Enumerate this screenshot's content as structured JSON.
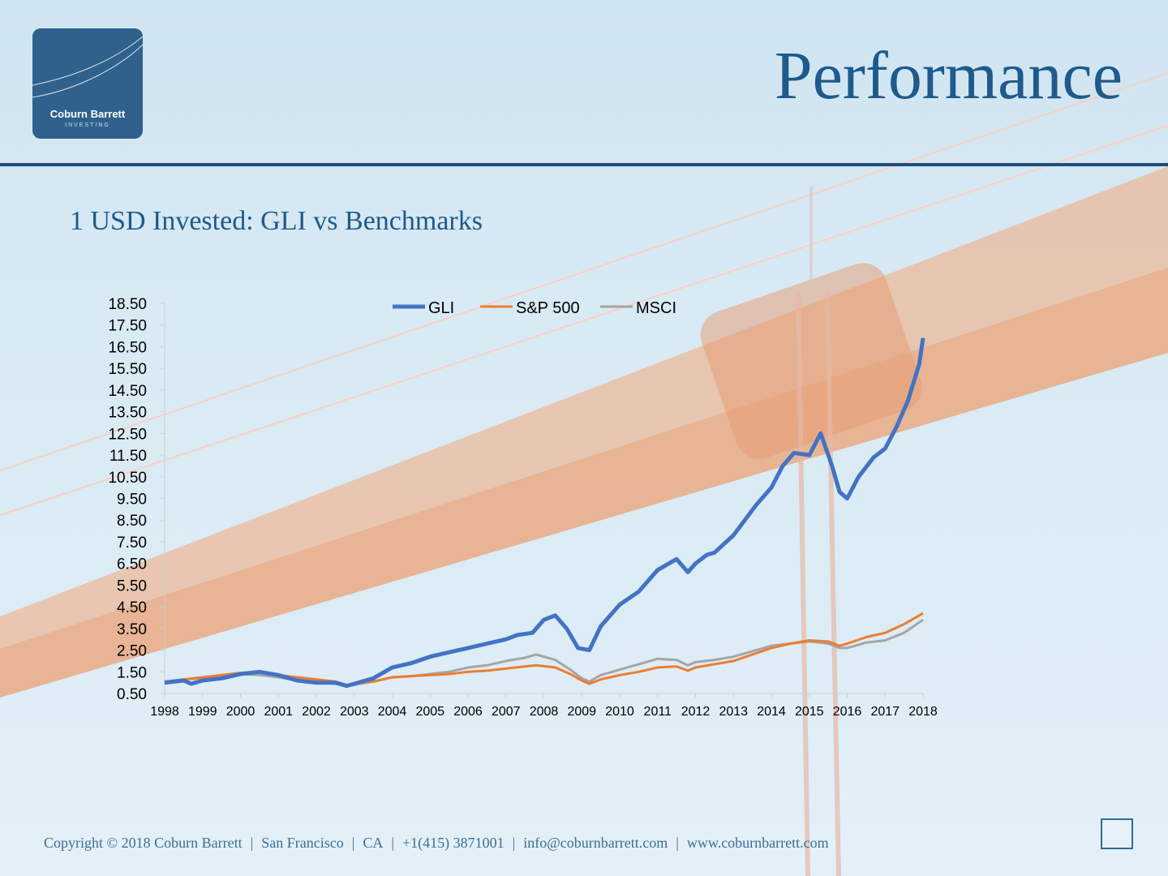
{
  "header": {
    "logo_name": "Coburn Barrett",
    "logo_sub": "INVESTING",
    "title": "Performance"
  },
  "subtitle": "1 USD Invested: GLI vs Benchmarks",
  "footer": {
    "copyright": "Copyright © 2018 Coburn Barrett",
    "city": "San Francisco",
    "state": "CA",
    "phone": "+1(415) 3871001",
    "email": "info@coburnbarrett.com",
    "website": "www.coburnbarrett.com"
  },
  "colors": {
    "title": "#1e5a8c",
    "rule": "#1f4e79",
    "gli": "#4472c4",
    "sp500": "#ed7d31",
    "msci": "#a5a5a5"
  },
  "chart_data": {
    "type": "line",
    "title": "",
    "xlabel": "",
    "ylabel": "",
    "xlim": [
      1998,
      2018
    ],
    "ylim": [
      0.5,
      18.5
    ],
    "yticks": [
      "0.50",
      "1.50",
      "2.50",
      "3.50",
      "4.50",
      "5.50",
      "6.50",
      "7.50",
      "8.50",
      "9.50",
      "10.50",
      "11.50",
      "12.50",
      "13.50",
      "14.50",
      "15.50",
      "16.50",
      "17.50",
      "18.50"
    ],
    "xticks": [
      "1998",
      "1999",
      "2000",
      "2001",
      "2002",
      "2003",
      "2004",
      "2005",
      "2006",
      "2007",
      "2008",
      "2009",
      "2010",
      "2011",
      "2012",
      "2013",
      "2014",
      "2015",
      "2016",
      "2017",
      "2018"
    ],
    "grid": false,
    "legend_position": "top",
    "series": [
      {
        "name": "GLI",
        "color": "#4472c4",
        "x": [
          1998.0,
          1998.5,
          1998.7,
          1999.0,
          1999.5,
          2000.0,
          2000.5,
          2001.0,
          2001.5,
          2002.0,
          2002.5,
          2002.8,
          2003.0,
          2003.5,
          2004.0,
          2004.5,
          2005.0,
          2005.5,
          2006.0,
          2006.5,
          2007.0,
          2007.3,
          2007.7,
          2008.0,
          2008.3,
          2008.6,
          2008.9,
          2009.2,
          2009.5,
          2010.0,
          2010.5,
          2011.0,
          2011.5,
          2011.8,
          2012.0,
          2012.3,
          2012.5,
          2013.0,
          2013.3,
          2013.6,
          2014.0,
          2014.3,
          2014.6,
          2015.0,
          2015.3,
          2015.6,
          2015.8,
          2016.0,
          2016.3,
          2016.7,
          2017.0,
          2017.3,
          2017.6,
          2017.9,
          2018.0
        ],
        "y": [
          1.0,
          1.1,
          0.95,
          1.1,
          1.2,
          1.4,
          1.5,
          1.35,
          1.1,
          1.0,
          1.0,
          0.85,
          0.95,
          1.2,
          1.7,
          1.9,
          2.2,
          2.4,
          2.6,
          2.8,
          3.0,
          3.2,
          3.3,
          3.9,
          4.1,
          3.5,
          2.6,
          2.5,
          3.6,
          4.6,
          5.2,
          6.2,
          6.7,
          6.1,
          6.5,
          6.9,
          7.0,
          7.8,
          8.5,
          9.2,
          10.0,
          11.0,
          11.6,
          11.5,
          12.5,
          11.0,
          9.8,
          9.5,
          10.5,
          11.4,
          11.8,
          12.8,
          14.0,
          15.7,
          16.9
        ]
      },
      {
        "name": "S&P 500",
        "color": "#ed7d31",
        "x": [
          1998.0,
          1998.5,
          1999.0,
          1999.5,
          2000.0,
          2000.5,
          2001.0,
          2001.5,
          2002.0,
          2002.5,
          2002.8,
          2003.0,
          2003.5,
          2004.0,
          2004.5,
          2005.0,
          2005.5,
          2006.0,
          2006.5,
          2007.0,
          2007.5,
          2007.8,
          2008.3,
          2008.7,
          2009.0,
          2009.2,
          2009.5,
          2010.0,
          2010.5,
          2011.0,
          2011.5,
          2011.8,
          2012.0,
          2012.5,
          2013.0,
          2013.5,
          2014.0,
          2014.5,
          2015.0,
          2015.5,
          2015.8,
          2016.0,
          2016.5,
          2017.0,
          2017.5,
          2018.0
        ],
        "y": [
          1.0,
          1.15,
          1.25,
          1.35,
          1.45,
          1.5,
          1.35,
          1.25,
          1.15,
          1.05,
          0.9,
          0.95,
          1.05,
          1.25,
          1.3,
          1.35,
          1.4,
          1.5,
          1.55,
          1.65,
          1.75,
          1.8,
          1.7,
          1.4,
          1.1,
          0.95,
          1.15,
          1.35,
          1.5,
          1.7,
          1.75,
          1.55,
          1.7,
          1.85,
          2.0,
          2.3,
          2.6,
          2.8,
          2.95,
          2.9,
          2.7,
          2.8,
          3.1,
          3.3,
          3.7,
          4.2
        ]
      },
      {
        "name": "MSCI",
        "color": "#a5a5a5",
        "x": [
          1998.0,
          1998.5,
          1999.0,
          1999.5,
          2000.0,
          2000.5,
          2001.0,
          2001.5,
          2002.0,
          2002.5,
          2002.8,
          2003.0,
          2003.5,
          2004.0,
          2004.5,
          2005.0,
          2005.5,
          2006.0,
          2006.5,
          2007.0,
          2007.5,
          2007.8,
          2008.3,
          2008.7,
          2009.0,
          2009.2,
          2009.5,
          2010.0,
          2010.5,
          2011.0,
          2011.5,
          2011.8,
          2012.0,
          2012.5,
          2013.0,
          2013.5,
          2014.0,
          2014.5,
          2015.0,
          2015.5,
          2015.8,
          2016.0,
          2016.5,
          2017.0,
          2017.5,
          2018.0
        ],
        "y": [
          1.05,
          1.15,
          1.2,
          1.3,
          1.4,
          1.35,
          1.25,
          1.1,
          1.0,
          0.95,
          0.85,
          0.9,
          1.05,
          1.25,
          1.3,
          1.4,
          1.5,
          1.7,
          1.8,
          2.0,
          2.15,
          2.3,
          2.05,
          1.6,
          1.2,
          1.05,
          1.35,
          1.6,
          1.85,
          2.1,
          2.05,
          1.8,
          1.95,
          2.05,
          2.2,
          2.45,
          2.7,
          2.8,
          2.9,
          2.8,
          2.6,
          2.6,
          2.85,
          2.95,
          3.3,
          3.9
        ]
      }
    ]
  }
}
